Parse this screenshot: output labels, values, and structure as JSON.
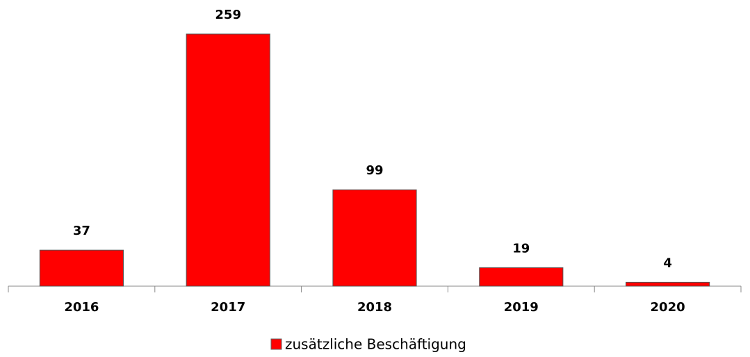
{
  "chart_data": {
    "type": "bar",
    "categories": [
      "2016",
      "2017",
      "2018",
      "2019",
      "2020"
    ],
    "values": [
      37,
      259,
      99,
      19,
      4
    ],
    "series_name": "zusätzliche Beschäftigung",
    "color": "#ff0000",
    "legend": "bottom"
  }
}
